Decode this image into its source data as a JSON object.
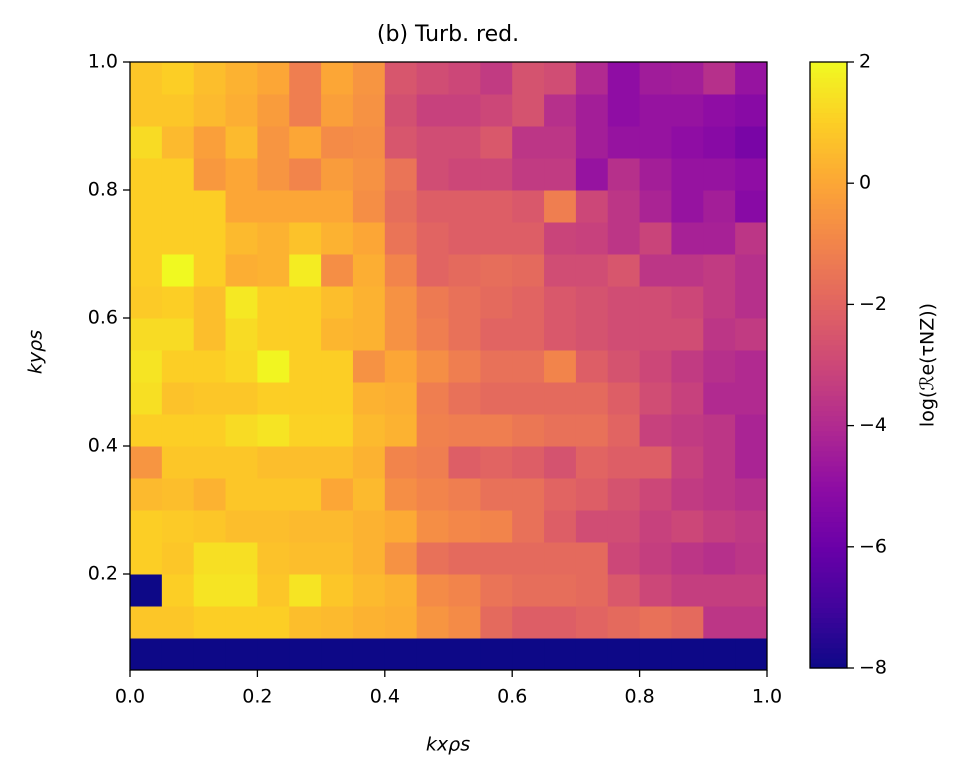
{
  "chart_data": {
    "type": "heatmap",
    "title": "(b) Turb. red.",
    "x_label": "kxρs",
    "y_label": "kyρs",
    "colorbar_label": "log(ℛe(τNZ))",
    "colormap": "plasma",
    "xbins": [
      0,
      0.05,
      0.1,
      0.15,
      0.2,
      0.25,
      0.3,
      0.35,
      0.4,
      0.45,
      0.5,
      0.55,
      0.6,
      0.65,
      0.7,
      0.75,
      0.8,
      0.85,
      0.9,
      0.95,
      1.0
    ],
    "ybins": [
      0.05,
      0.1,
      0.15,
      0.2,
      0.25,
      0.3,
      0.35,
      0.4,
      0.45,
      0.5,
      0.55,
      0.6,
      0.65,
      0.7,
      0.75,
      0.8,
      0.85,
      0.9,
      0.95,
      1.0
    ],
    "values": [
      [
        -8,
        -8,
        -8,
        -8,
        -8,
        -8,
        -8,
        -8,
        -8,
        -8,
        -8,
        -8,
        -8,
        -8,
        -8,
        -8,
        -8,
        -8,
        -8,
        -8
      ],
      [
        0.8,
        0.8,
        1,
        1,
        1,
        0.6,
        0.5,
        0.3,
        0.2,
        -0.5,
        -0.8,
        -1.8,
        -2.2,
        -2.2,
        -2,
        -1.8,
        -1.6,
        -1.8,
        -3.6,
        -3.6
      ],
      [
        -8,
        1,
        1.5,
        1.5,
        0.8,
        1.5,
        0.8,
        0.5,
        0.3,
        -0.8,
        -1,
        -1.5,
        -1.7,
        -1.7,
        -1.8,
        -2.4,
        -3,
        -3.3,
        -3.3,
        -3.3
      ],
      [
        1,
        0.8,
        1.4,
        1.4,
        0.7,
        0.6,
        0.6,
        0.3,
        -0.6,
        -1.6,
        -1.8,
        -1.8,
        -1.8,
        -1.8,
        -1.8,
        -3,
        -3.3,
        -3.6,
        -3.8,
        -3.6
      ],
      [
        1,
        0.9,
        0.8,
        0.6,
        0.6,
        0.5,
        0.5,
        0.3,
        0.1,
        -0.7,
        -0.9,
        -1,
        -1.6,
        -2.2,
        -2.8,
        -2.8,
        -3.2,
        -3,
        -3.3,
        -3.5
      ],
      [
        0.5,
        0.6,
        0.3,
        0.8,
        0.8,
        0.8,
        0,
        0.5,
        -0.7,
        -1,
        -1.2,
        -1.6,
        -1.6,
        -2,
        -2.2,
        -2.6,
        -3,
        -3.4,
        -3.6,
        -3.8
      ],
      [
        -0.5,
        0.8,
        0.8,
        0.8,
        0.6,
        0.6,
        0.6,
        0.3,
        -1,
        -1.2,
        -2.2,
        -2,
        -2.2,
        -2.6,
        -2,
        -2.2,
        -2.2,
        -3.2,
        -3.6,
        -4.2
      ],
      [
        1,
        1,
        1,
        1.3,
        1.5,
        1.1,
        1.1,
        0.5,
        0.3,
        -1.1,
        -1.2,
        -1.2,
        -1.4,
        -1.6,
        -1.6,
        -2,
        -3.2,
        -3.4,
        -3.6,
        -4.2
      ],
      [
        1.4,
        0.7,
        0.8,
        0.8,
        1,
        1,
        1,
        0.3,
        0.2,
        -1.2,
        -1.6,
        -1.8,
        -1.8,
        -1.8,
        -1.8,
        -2.2,
        -2.8,
        -3.2,
        -4,
        -4
      ],
      [
        1.5,
        1,
        1,
        1.2,
        1.9,
        1,
        1,
        -0.6,
        0,
        -0.7,
        -1.2,
        -1.6,
        -1.6,
        -1,
        -2.2,
        -2.6,
        -3,
        -3.4,
        -3.8,
        -4
      ],
      [
        1.3,
        1.3,
        0.6,
        1.3,
        1,
        1,
        0.4,
        0.3,
        -0.6,
        -1.2,
        -1.6,
        -2,
        -2,
        -2.4,
        -2.6,
        -2.8,
        -2.8,
        -2.8,
        -3.6,
        -3.4
      ],
      [
        0.9,
        1,
        0.6,
        1.6,
        1,
        1,
        0.6,
        0.3,
        -0.6,
        -1.3,
        -1.6,
        -1.8,
        -2,
        -2.4,
        -2.6,
        -2.8,
        -2.8,
        -3,
        -3.4,
        -3.8
      ],
      [
        1,
        2,
        1,
        0.2,
        0.3,
        1.7,
        -0.7,
        0.2,
        -1,
        -2,
        -1.8,
        -1.7,
        -1.8,
        -2.8,
        -2.8,
        -2.5,
        -3.6,
        -3.6,
        -3.4,
        -3.8
      ],
      [
        1,
        1,
        1,
        0.5,
        0.3,
        0.7,
        0.3,
        0,
        -1.5,
        -2,
        -2.2,
        -2.2,
        -2.2,
        -3.1,
        -3.2,
        -3.6,
        -3.1,
        -4.3,
        -4.3,
        -3.6
      ],
      [
        1,
        1,
        1,
        0,
        0,
        0,
        0,
        -0.7,
        -1.7,
        -2.2,
        -2.2,
        -2.2,
        -2.4,
        -1.2,
        -3,
        -3.6,
        -4.2,
        -4.8,
        -4.4,
        -5.2
      ],
      [
        1,
        1,
        -0.4,
        0,
        -0.5,
        -1,
        -0.3,
        -0.6,
        -1.5,
        -2.8,
        -3,
        -3,
        -3.4,
        -3.4,
        -4.8,
        -3.8,
        -4.4,
        -4.8,
        -4.8,
        -5
      ],
      [
        1.3,
        0.5,
        -0.2,
        0.5,
        -0.5,
        0,
        -0.8,
        -0.7,
        -2.5,
        -2.8,
        -2.8,
        -2.4,
        -3.6,
        -3.6,
        -4.4,
        -4.8,
        -4.8,
        -5,
        -5.2,
        -5.6
      ],
      [
        0.8,
        0.8,
        0.5,
        0.2,
        -0.3,
        -1.2,
        -0.2,
        -0.6,
        -2.7,
        -3.2,
        -3.2,
        -3,
        -2.6,
        -3.8,
        -4.4,
        -5,
        -4.8,
        -4.8,
        -5,
        -5.2
      ],
      [
        0.8,
        1,
        0.6,
        0.3,
        0,
        -1.2,
        0,
        -0.5,
        -2.5,
        -2.8,
        -3,
        -3.4,
        -2.6,
        -2.8,
        -4,
        -5,
        -4.5,
        -4.4,
        -3.8,
        -4.8
      ]
    ],
    "xlim": [
      0,
      1
    ],
    "ylim": [
      0.05,
      1
    ],
    "xticks": [
      {
        "value": 0,
        "label": "0.0"
      },
      0.2,
      0.4,
      0.6,
      0.8,
      {
        "value": 1,
        "label": "1.0"
      }
    ],
    "yticks": [
      0.2,
      0.4,
      0.6,
      0.8,
      {
        "value": 1,
        "label": "1.0"
      }
    ],
    "clim": [
      -8,
      2
    ],
    "cticks": [
      {
        "value": 2,
        "label": "2"
      },
      {
        "value": 0,
        "label": "0"
      },
      {
        "value": -2,
        "label": "−2"
      },
      {
        "value": -4,
        "label": "−4"
      },
      {
        "value": -6,
        "label": "−6"
      },
      {
        "value": -8,
        "label": "−8"
      }
    ]
  }
}
